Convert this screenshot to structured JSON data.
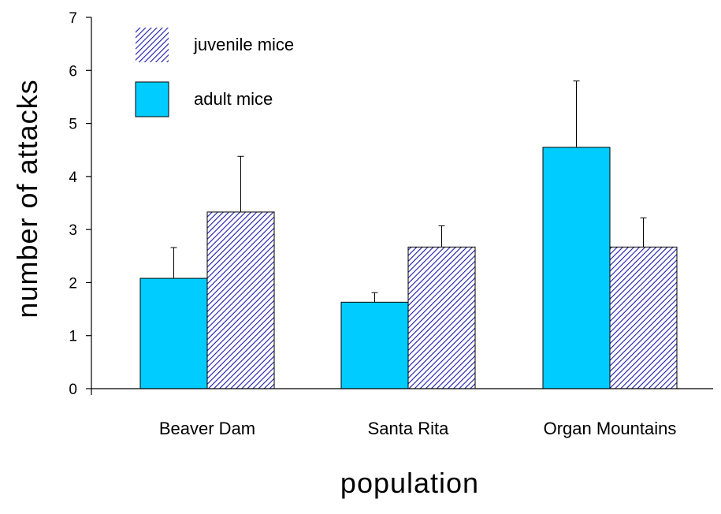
{
  "chart_data": {
    "type": "bar",
    "categories": [
      "Beaver Dam",
      "Santa Rita",
      "Organ Mountains"
    ],
    "series": [
      {
        "name": "adult mice",
        "color": "#00ccff",
        "pattern": "solid",
        "values": [
          2.08,
          1.63,
          4.55
        ],
        "error": [
          0.58,
          0.18,
          1.25
        ]
      },
      {
        "name": "juvenile mice",
        "color": "#1a1aaa",
        "pattern": "diagonal-hatch",
        "values": [
          3.33,
          2.67,
          2.67
        ],
        "error": [
          1.05,
          0.4,
          0.55
        ]
      }
    ],
    "legend_order": [
      "juvenile mice",
      "adult mice"
    ],
    "legend_position": "top-left",
    "xlabel": "population",
    "ylabel": "number of attacks",
    "ylim": [
      0,
      7
    ],
    "yticks": [
      "0",
      "1",
      "2",
      "3",
      "4",
      "5",
      "6",
      "7"
    ],
    "grid": false
  }
}
